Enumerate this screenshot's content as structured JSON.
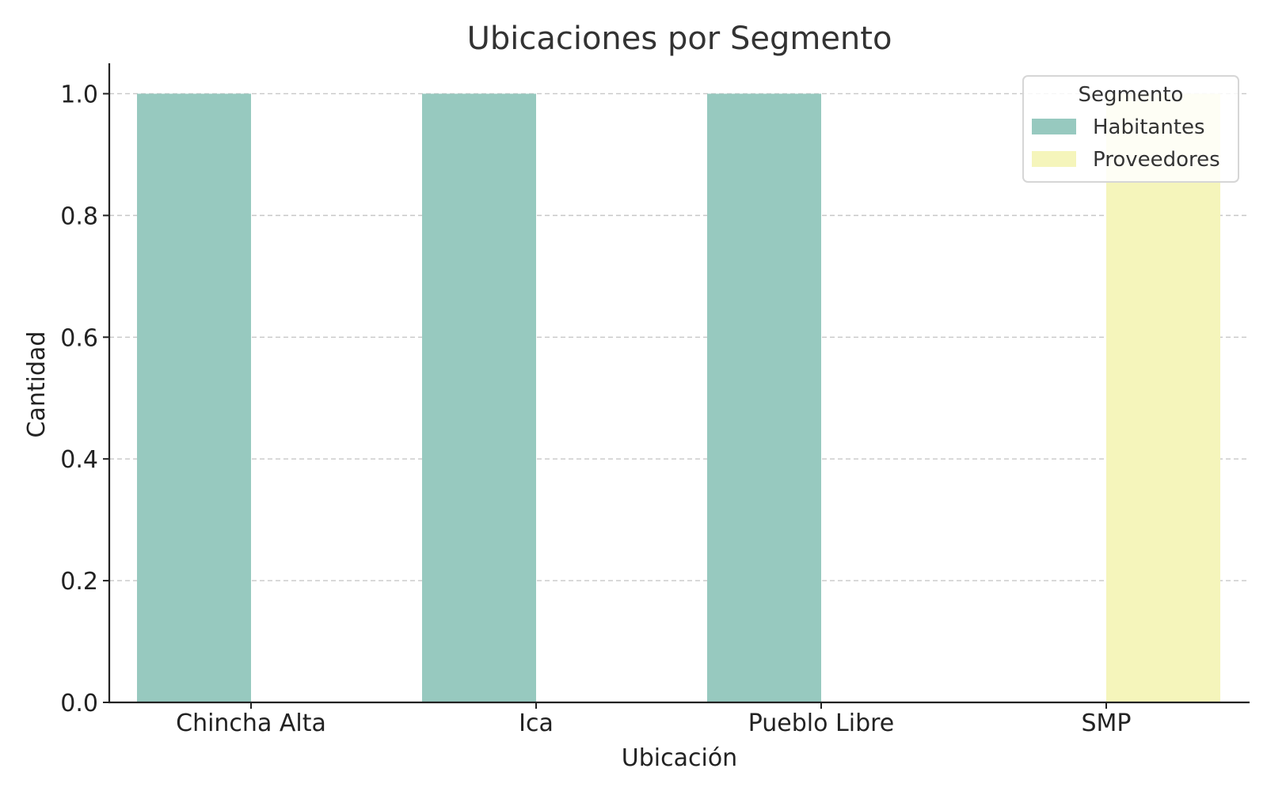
{
  "chart_data": {
    "type": "bar",
    "title": "Ubicaciones por Segmento",
    "xlabel": "Ubicación",
    "ylabel": "Cantidad",
    "categories": [
      "Chincha Alta",
      "Ica",
      "Pueblo Libre",
      "SMP"
    ],
    "series": [
      {
        "name": "Habitantes",
        "color": "#97c9bf",
        "values": [
          1,
          1,
          1,
          0
        ]
      },
      {
        "name": "Proveedores",
        "color": "#f5f5bb",
        "values": [
          0,
          0,
          0,
          1
        ]
      }
    ],
    "ylim": [
      0,
      1.05
    ],
    "yticks": [
      "0.0",
      "0.2",
      "0.4",
      "0.6",
      "0.8",
      "1.0"
    ],
    "grid": "y-dashed",
    "legend": {
      "title": "Segmento",
      "placement": "top-right"
    }
  }
}
